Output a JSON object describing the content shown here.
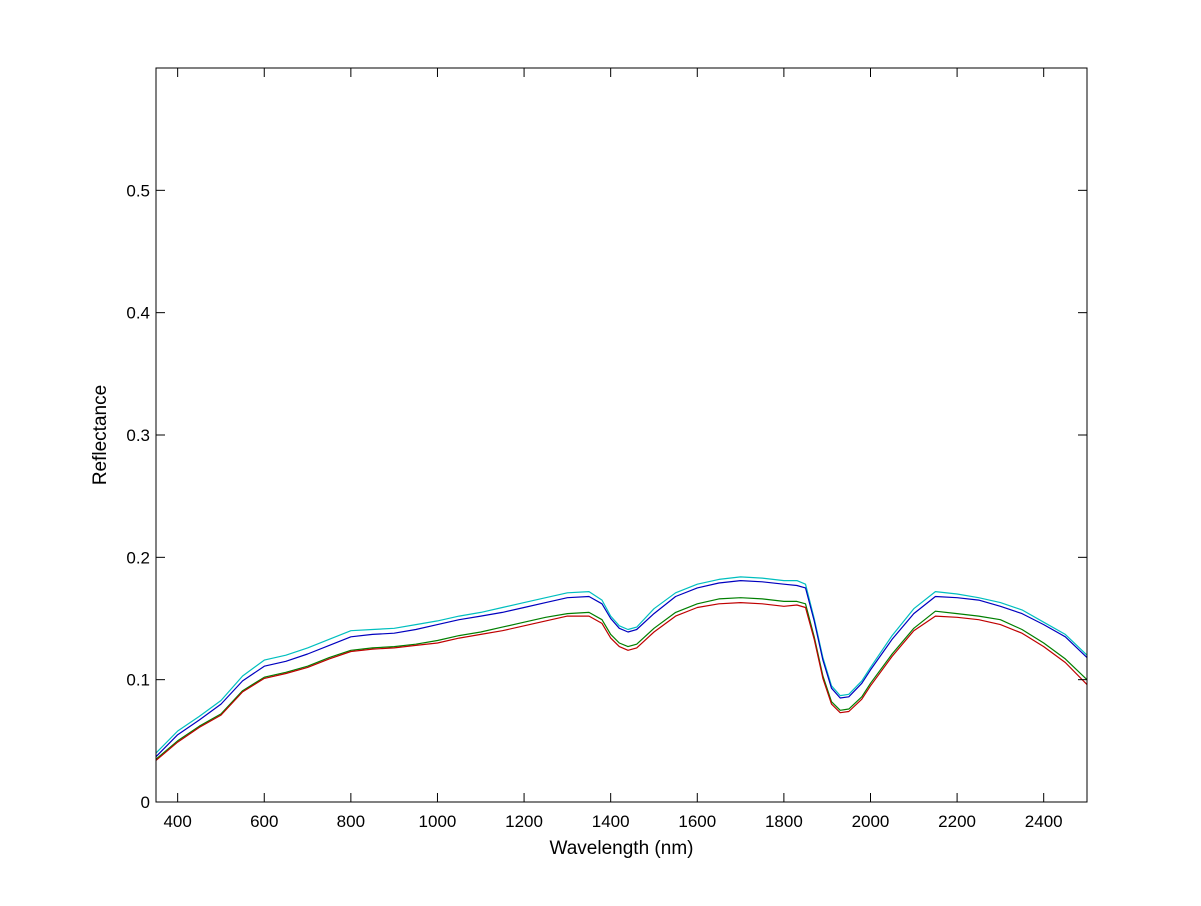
{
  "chart_data": {
    "type": "line",
    "title": "",
    "xlabel": "Wavelength (nm)",
    "ylabel": "Reflectance",
    "xlim": [
      350,
      2500
    ],
    "ylim": [
      0,
      0.6
    ],
    "xticks": [
      400,
      600,
      800,
      1000,
      1200,
      1400,
      1600,
      1800,
      2000,
      2200,
      2400
    ],
    "yticks": [
      0,
      0.1,
      0.2,
      0.3,
      0.4,
      0.5
    ],
    "xtick_labels": [
      "400",
      "600",
      "800",
      "1000",
      "1200",
      "1400",
      "1600",
      "1800",
      "2000",
      "2200",
      "2400"
    ],
    "ytick_labels": [
      "0",
      "0.1",
      "0.2",
      "0.3",
      "0.4",
      "0.5"
    ],
    "grid": false,
    "legend": "none",
    "x": [
      350,
      400,
      450,
      500,
      550,
      600,
      650,
      700,
      750,
      800,
      850,
      900,
      950,
      1000,
      1050,
      1100,
      1150,
      1200,
      1250,
      1300,
      1350,
      1380,
      1400,
      1420,
      1440,
      1460,
      1500,
      1550,
      1600,
      1650,
      1700,
      1750,
      1800,
      1830,
      1850,
      1870,
      1890,
      1910,
      1930,
      1950,
      1980,
      2000,
      2050,
      2100,
      2150,
      2200,
      2250,
      2300,
      2350,
      2400,
      2450,
      2500
    ],
    "series": [
      {
        "color": "#00bfbf",
        "values": [
          0.04,
          0.058,
          0.07,
          0.083,
          0.103,
          0.116,
          0.12,
          0.126,
          0.133,
          0.14,
          0.141,
          0.142,
          0.145,
          0.148,
          0.152,
          0.155,
          0.159,
          0.163,
          0.167,
          0.171,
          0.172,
          0.165,
          0.152,
          0.144,
          0.141,
          0.143,
          0.158,
          0.171,
          0.178,
          0.182,
          0.184,
          0.183,
          0.181,
          0.181,
          0.178,
          0.15,
          0.118,
          0.095,
          0.087,
          0.088,
          0.099,
          0.11,
          0.136,
          0.158,
          0.172,
          0.17,
          0.167,
          0.163,
          0.157,
          0.147,
          0.137,
          0.12
        ]
      },
      {
        "color": "#0000bf",
        "values": [
          0.037,
          0.055,
          0.067,
          0.08,
          0.099,
          0.111,
          0.115,
          0.121,
          0.128,
          0.135,
          0.137,
          0.138,
          0.141,
          0.145,
          0.149,
          0.152,
          0.155,
          0.159,
          0.163,
          0.167,
          0.168,
          0.162,
          0.15,
          0.142,
          0.139,
          0.141,
          0.154,
          0.168,
          0.175,
          0.179,
          0.181,
          0.18,
          0.178,
          0.177,
          0.175,
          0.148,
          0.116,
          0.093,
          0.085,
          0.086,
          0.097,
          0.108,
          0.133,
          0.154,
          0.168,
          0.167,
          0.165,
          0.16,
          0.154,
          0.145,
          0.135,
          0.118
        ]
      },
      {
        "color": "#007f00",
        "values": [
          0.035,
          0.05,
          0.062,
          0.072,
          0.091,
          0.102,
          0.106,
          0.111,
          0.118,
          0.124,
          0.126,
          0.127,
          0.129,
          0.132,
          0.136,
          0.139,
          0.143,
          0.147,
          0.151,
          0.154,
          0.155,
          0.149,
          0.137,
          0.13,
          0.127,
          0.129,
          0.142,
          0.155,
          0.162,
          0.166,
          0.167,
          0.166,
          0.164,
          0.164,
          0.162,
          0.135,
          0.103,
          0.082,
          0.075,
          0.076,
          0.086,
          0.097,
          0.121,
          0.142,
          0.156,
          0.154,
          0.152,
          0.149,
          0.141,
          0.13,
          0.117,
          0.1
        ]
      },
      {
        "color": "#bf0000",
        "values": [
          0.034,
          0.049,
          0.061,
          0.071,
          0.09,
          0.101,
          0.105,
          0.11,
          0.117,
          0.123,
          0.125,
          0.126,
          0.128,
          0.13,
          0.134,
          0.137,
          0.14,
          0.144,
          0.148,
          0.152,
          0.152,
          0.146,
          0.134,
          0.127,
          0.124,
          0.126,
          0.139,
          0.152,
          0.159,
          0.162,
          0.163,
          0.162,
          0.16,
          0.161,
          0.159,
          0.133,
          0.101,
          0.08,
          0.073,
          0.074,
          0.084,
          0.095,
          0.119,
          0.14,
          0.152,
          0.151,
          0.149,
          0.145,
          0.138,
          0.127,
          0.114,
          0.096
        ]
      }
    ]
  }
}
